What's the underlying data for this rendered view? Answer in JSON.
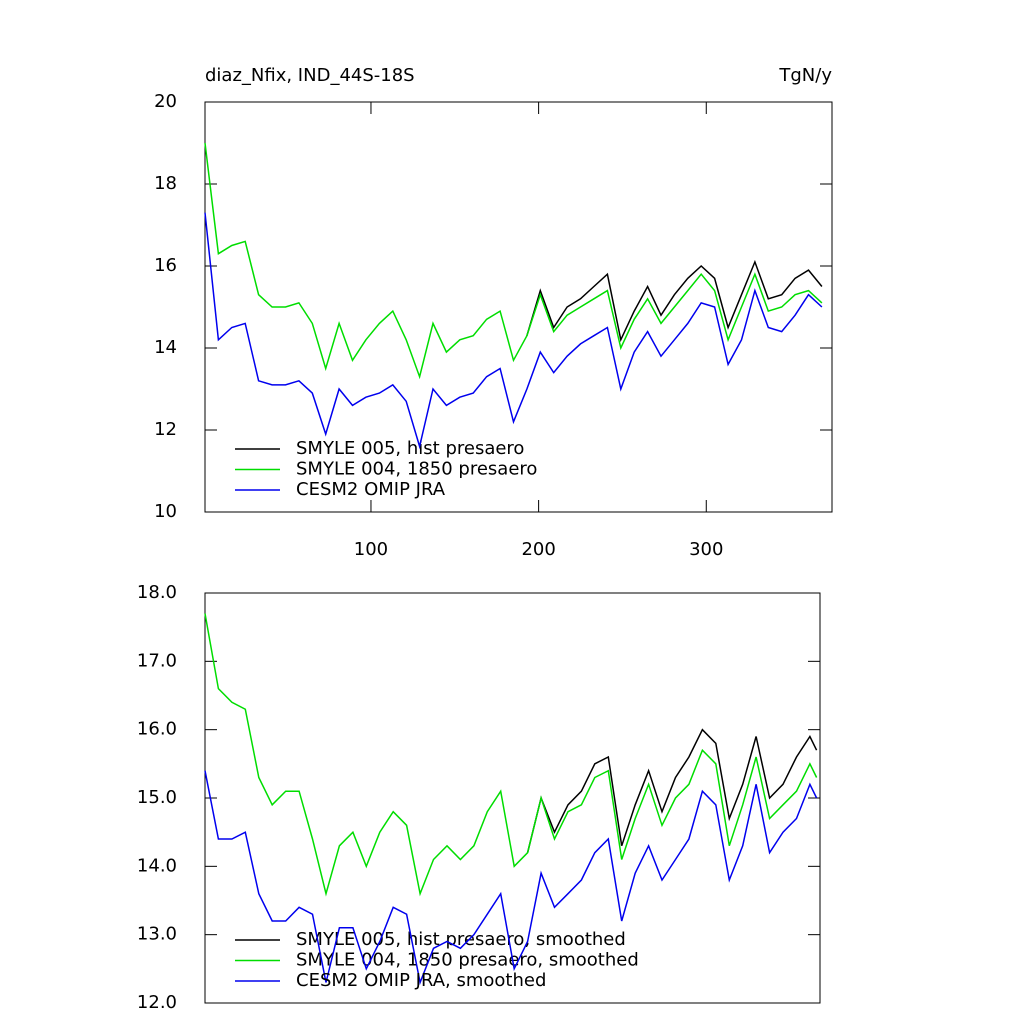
{
  "chart_data": [
    {
      "type": "line",
      "title": "diaz_Nfix, IND_44S-18S",
      "units": "TgN/y",
      "x": [
        1,
        9,
        17,
        25,
        33,
        41,
        49,
        57,
        65,
        73,
        81,
        89,
        97,
        105,
        113,
        121,
        129,
        137,
        145,
        153,
        161,
        169,
        177,
        185,
        193,
        201,
        209,
        217,
        225,
        233,
        241,
        249,
        257,
        265,
        273,
        281,
        289,
        297,
        305,
        313,
        321,
        329,
        337,
        345,
        353,
        361,
        369
      ],
      "series": [
        {
          "name": "SMYLE 005, hist presaero",
          "color": "#000000",
          "values": [
            null,
            null,
            null,
            null,
            null,
            null,
            null,
            null,
            null,
            null,
            null,
            null,
            null,
            null,
            null,
            null,
            null,
            null,
            null,
            null,
            null,
            null,
            null,
            null,
            14.3,
            15.4,
            14.5,
            15.0,
            15.2,
            15.5,
            15.8,
            14.2,
            14.9,
            15.5,
            14.8,
            15.3,
            15.7,
            16.0,
            15.7,
            14.5,
            15.3,
            16.1,
            15.2,
            15.3,
            15.7,
            15.9,
            15.5
          ]
        },
        {
          "name": "SMYLE 004, 1850 presaero",
          "color": "#00dd00",
          "values": [
            19.0,
            16.3,
            16.5,
            16.6,
            15.3,
            15.0,
            15.0,
            15.1,
            14.6,
            13.5,
            14.6,
            13.7,
            14.2,
            14.6,
            14.9,
            14.2,
            13.3,
            14.6,
            13.9,
            14.2,
            14.3,
            14.7,
            14.9,
            13.7,
            14.3,
            15.3,
            14.4,
            14.8,
            15.0,
            15.2,
            15.4,
            14.0,
            14.7,
            15.2,
            14.6,
            15.0,
            15.4,
            15.8,
            15.4,
            14.2,
            15.0,
            15.8,
            14.9,
            15.0,
            15.3,
            15.4,
            15.1
          ]
        },
        {
          "name": "CESM2 OMIP JRA",
          "color": "#0000ee",
          "values": [
            17.3,
            14.2,
            14.5,
            14.6,
            13.2,
            13.1,
            13.1,
            13.2,
            12.9,
            11.9,
            13.0,
            12.6,
            12.8,
            12.9,
            13.1,
            12.7,
            11.6,
            13.0,
            12.6,
            12.8,
            12.9,
            13.3,
            13.5,
            12.2,
            13.0,
            13.9,
            13.4,
            13.8,
            14.1,
            14.3,
            14.5,
            13.0,
            13.9,
            14.4,
            13.8,
            14.2,
            14.6,
            15.1,
            15.0,
            13.6,
            14.2,
            15.4,
            14.5,
            14.4,
            14.8,
            15.3,
            15.0
          ]
        }
      ],
      "xlim": [
        1,
        375
      ],
      "ylim": [
        10,
        20
      ],
      "xticks": [
        100,
        200,
        300
      ],
      "yticks": [
        10,
        12,
        14,
        16,
        18,
        20
      ]
    },
    {
      "type": "line",
      "x": [
        1,
        9,
        17,
        25,
        33,
        41,
        49,
        57,
        65,
        73,
        81,
        89,
        97,
        105,
        113,
        121,
        129,
        137,
        145,
        153,
        161,
        169,
        177,
        185,
        193,
        201,
        209,
        217,
        225,
        233,
        241,
        249,
        257,
        265,
        273,
        281,
        289,
        297,
        305,
        313,
        321,
        329,
        337,
        345,
        353,
        361,
        365
      ],
      "series": [
        {
          "name": "SMYLE 005, hist presaero, smoothed",
          "color": "#000000",
          "values": [
            null,
            null,
            null,
            null,
            null,
            null,
            null,
            null,
            null,
            null,
            null,
            null,
            null,
            null,
            null,
            null,
            null,
            null,
            null,
            null,
            null,
            null,
            null,
            null,
            14.2,
            15.0,
            14.5,
            14.9,
            15.1,
            15.5,
            15.6,
            14.3,
            14.9,
            15.4,
            14.8,
            15.3,
            15.6,
            16.0,
            15.8,
            14.7,
            15.2,
            15.9,
            15.0,
            15.2,
            15.6,
            15.9,
            15.7
          ]
        },
        {
          "name": "SMYLE 004, 1850 presaero, smoothed",
          "color": "#00dd00",
          "values": [
            17.7,
            16.6,
            16.4,
            16.3,
            15.3,
            14.9,
            15.1,
            15.1,
            14.4,
            13.6,
            14.3,
            14.5,
            14.0,
            14.5,
            14.8,
            14.6,
            13.6,
            14.1,
            14.3,
            14.1,
            14.3,
            14.8,
            15.1,
            14.0,
            14.2,
            15.0,
            14.4,
            14.8,
            14.9,
            15.3,
            15.4,
            14.1,
            14.7,
            15.2,
            14.6,
            15.0,
            15.2,
            15.7,
            15.5,
            14.3,
            14.9,
            15.6,
            14.7,
            14.9,
            15.1,
            15.5,
            15.3
          ]
        },
        {
          "name": "CESM2 OMIP JRA, smoothed",
          "color": "#0000ee",
          "values": [
            15.4,
            14.4,
            14.4,
            14.5,
            13.6,
            13.2,
            13.2,
            13.4,
            13.3,
            12.3,
            13.1,
            13.1,
            12.5,
            12.9,
            13.4,
            13.3,
            12.3,
            12.8,
            12.9,
            12.8,
            13.0,
            13.3,
            13.6,
            12.5,
            12.9,
            13.9,
            13.4,
            13.6,
            13.8,
            14.2,
            14.4,
            13.2,
            13.9,
            14.3,
            13.8,
            14.1,
            14.4,
            15.1,
            14.9,
            13.8,
            14.3,
            15.2,
            14.2,
            14.5,
            14.7,
            15.2,
            15.0
          ]
        }
      ],
      "xlim": [
        1,
        367
      ],
      "ylim": [
        12,
        18
      ],
      "yticks": [
        {
          "value": 12,
          "label": "12.0"
        },
        {
          "value": 13,
          "label": "13.0"
        },
        {
          "value": 14,
          "label": "14.0"
        },
        {
          "value": 15,
          "label": "15.0"
        },
        {
          "value": 16,
          "label": "16.0"
        },
        {
          "value": 17,
          "label": "17.0"
        },
        {
          "value": 18,
          "label": "18.0"
        }
      ]
    }
  ]
}
